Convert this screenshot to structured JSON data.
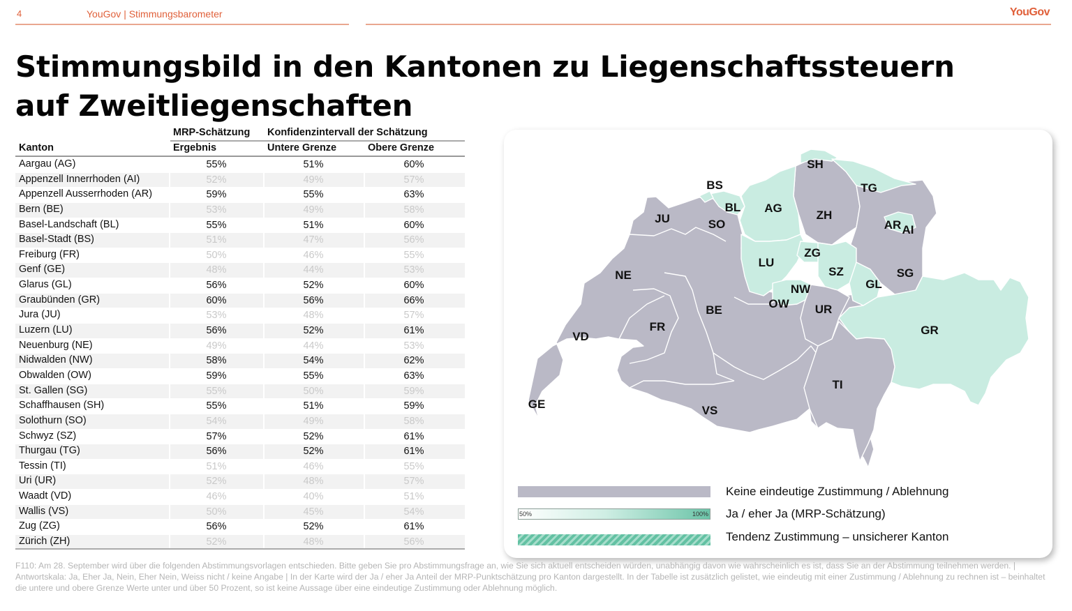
{
  "header": {
    "page_number": "4",
    "title": "YouGov | Stimmungsbarometer",
    "logo": "YouGov"
  },
  "page_title": "Stimmungsbild in den Kantonen zu Liegenschaftssteuern auf Zweitliegenschaften",
  "table": {
    "group_headers": {
      "estimate": "MRP-Schätzung",
      "confidence": "Konfidenzintervall der Schätzung"
    },
    "column_headers": {
      "kanton": "Kanton",
      "ergebnis": "Ergebnis",
      "untere": "Untere Grenze",
      "obere": "Obere Grenze"
    },
    "rows": [
      {
        "kanton": "Aargau (AG)",
        "ergebnis": "55%",
        "untere": "51%",
        "obere": "60%",
        "clear": true
      },
      {
        "kanton": "Appenzell Innerrhoden (AI)",
        "ergebnis": "52%",
        "untere": "49%",
        "obere": "57%",
        "clear": false
      },
      {
        "kanton": "Appenzell Ausserrhoden (AR)",
        "ergebnis": "59%",
        "untere": "55%",
        "obere": "63%",
        "clear": true
      },
      {
        "kanton": "Bern (BE)",
        "ergebnis": "53%",
        "untere": "49%",
        "obere": "58%",
        "clear": false
      },
      {
        "kanton": "Basel-Landschaft (BL)",
        "ergebnis": "55%",
        "untere": "51%",
        "obere": "60%",
        "clear": true
      },
      {
        "kanton": "Basel-Stadt (BS)",
        "ergebnis": "51%",
        "untere": "47%",
        "obere": "56%",
        "clear": false
      },
      {
        "kanton": "Freiburg (FR)",
        "ergebnis": "50%",
        "untere": "46%",
        "obere": "55%",
        "clear": false
      },
      {
        "kanton": "Genf (GE)",
        "ergebnis": "48%",
        "untere": "44%",
        "obere": "53%",
        "clear": false
      },
      {
        "kanton": "Glarus (GL)",
        "ergebnis": "56%",
        "untere": "52%",
        "obere": "60%",
        "clear": true
      },
      {
        "kanton": "Graubünden (GR)",
        "ergebnis": "60%",
        "untere": "56%",
        "obere": "66%",
        "clear": true
      },
      {
        "kanton": "Jura (JU)",
        "ergebnis": "53%",
        "untere": "48%",
        "obere": "57%",
        "clear": false
      },
      {
        "kanton": "Luzern (LU)",
        "ergebnis": "56%",
        "untere": "52%",
        "obere": "61%",
        "clear": true
      },
      {
        "kanton": "Neuenburg (NE)",
        "ergebnis": "49%",
        "untere": "44%",
        "obere": "53%",
        "clear": false
      },
      {
        "kanton": "Nidwalden (NW)",
        "ergebnis": "58%",
        "untere": "54%",
        "obere": "62%",
        "clear": true
      },
      {
        "kanton": "Obwalden (OW)",
        "ergebnis": "59%",
        "untere": "55%",
        "obere": "63%",
        "clear": true
      },
      {
        "kanton": "St. Gallen (SG)",
        "ergebnis": "55%",
        "untere": "50%",
        "obere": "59%",
        "clear": false
      },
      {
        "kanton": "Schaffhausen (SH)",
        "ergebnis": "55%",
        "untere": "51%",
        "obere": "59%",
        "clear": true
      },
      {
        "kanton": "Solothurn (SO)",
        "ergebnis": "54%",
        "untere": "49%",
        "obere": "58%",
        "clear": false
      },
      {
        "kanton": "Schwyz (SZ)",
        "ergebnis": "57%",
        "untere": "52%",
        "obere": "61%",
        "clear": true
      },
      {
        "kanton": "Thurgau (TG)",
        "ergebnis": "56%",
        "untere": "52%",
        "obere": "61%",
        "clear": true
      },
      {
        "kanton": "Tessin (TI)",
        "ergebnis": "51%",
        "untere": "46%",
        "obere": "55%",
        "clear": false
      },
      {
        "kanton": "Uri (UR)",
        "ergebnis": "52%",
        "untere": "48%",
        "obere": "57%",
        "clear": false
      },
      {
        "kanton": "Waadt (VD)",
        "ergebnis": "46%",
        "untere": "40%",
        "obere": "51%",
        "clear": false
      },
      {
        "kanton": "Wallis (VS)",
        "ergebnis": "50%",
        "untere": "45%",
        "obere": "54%",
        "clear": false
      },
      {
        "kanton": "Zug (ZG)",
        "ergebnis": "56%",
        "untere": "52%",
        "obere": "61%",
        "clear": true
      },
      {
        "kanton": "Zürich (ZH)",
        "ergebnis": "52%",
        "untere": "48%",
        "obere": "56%",
        "clear": false
      }
    ]
  },
  "map": {
    "colors": {
      "grey": "#bab9c6",
      "green": "#c9ece1",
      "border": "#ffffff"
    },
    "labels": {
      "SH": "SH",
      "BS": "BS",
      "TG": "TG",
      "BL": "BL",
      "AG": "AG",
      "ZH": "ZH",
      "JU": "JU",
      "SO": "SO",
      "AR": "AR",
      "AI": "AI",
      "ZG": "ZG",
      "LU": "LU",
      "SZ": "SZ",
      "NE": "NE",
      "SG": "SG",
      "GL": "GL",
      "NW": "NW",
      "OW": "OW",
      "BE": "BE",
      "UR": "UR",
      "GR": "GR",
      "FR": "FR",
      "VD": "VD",
      "TI": "TI",
      "GE": "GE",
      "VS": "VS"
    }
  },
  "legend": {
    "neutral": "Keine eindeutige Zustimmung / Ablehnung",
    "yes": "Ja / eher Ja (MRP-Schätzung)",
    "yes_min": "50%",
    "yes_max": "100%",
    "tendency": "Tendenz Zustimmung – unsicherer Kanton"
  },
  "footnote": "F110: Am 28. September wird über die folgenden Abstimmungsvorlagen entschieden. Bitte geben Sie pro Abstimmungsfrage an, wie Sie sich aktuell entscheiden würden, unabhängig davon wie wahrscheinlich es ist, dass Sie an der Abstimmung teilnehmen werden. | Antwortskala: Ja, Eher Ja, Nein, Eher Nein, Weiss nicht / keine Angabe | In der Karte wird der Ja / eher Ja Anteil der MRP-Punktschätzung pro Kanton dargestellt. In der Tabelle ist zusätzlich gelistet, wie eindeutig mit einer Zustimmung / Ablehnung zu rechnen ist – beinhaltet die untere und obere Grenze Werte unter und über 50 Prozent, so ist keine Aussage über eine eindeutige Zustimmung oder Ablehnung möglich."
}
